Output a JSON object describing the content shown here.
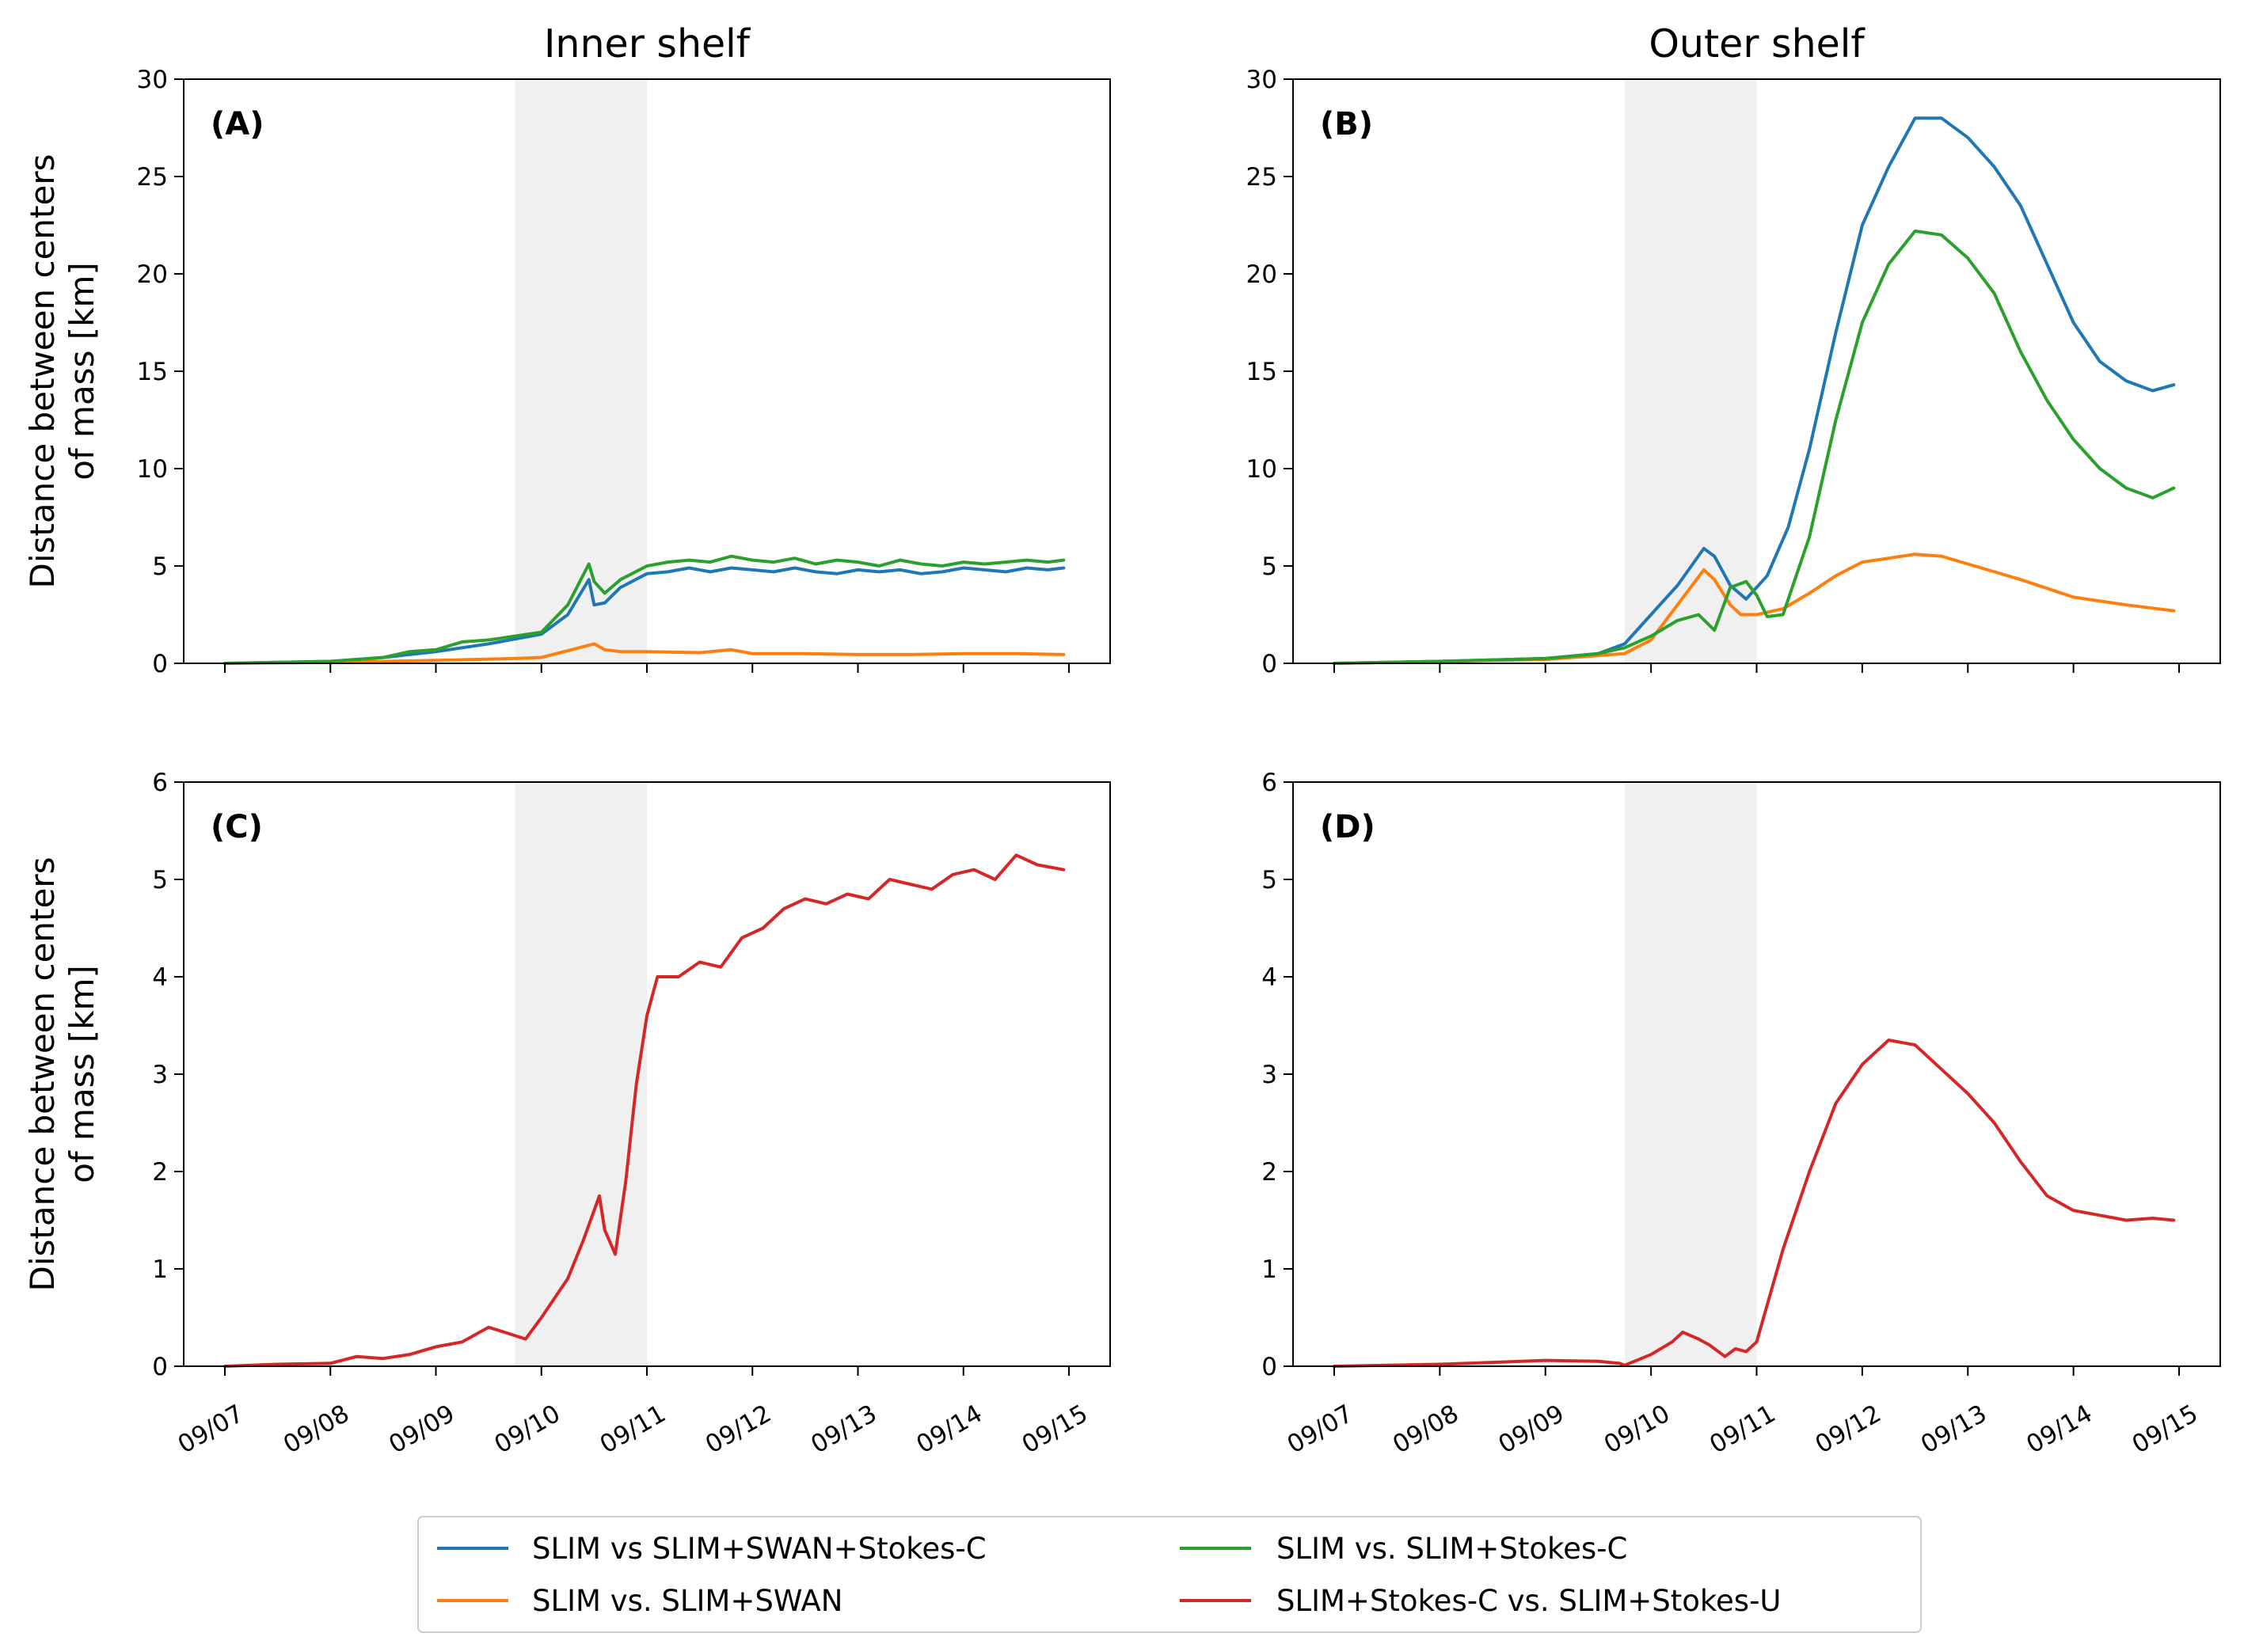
{
  "chart_data": [
    {
      "panel": "A",
      "type": "line",
      "column_title": "Inner shelf",
      "label": "(A)",
      "ylabel_lines": [
        "Distance between centers",
        "of mass [km]"
      ],
      "xlim": [
        0,
        8
      ],
      "ylim": [
        0,
        30
      ],
      "yticks": [
        0,
        5,
        10,
        15,
        20,
        25,
        30
      ],
      "show_x_tick_labels": false,
      "shade": [
        2.75,
        4.0
      ],
      "series": [
        {
          "name": "SLIM vs SLIM+SWAN+Stokes-C",
          "color": "#1f77b4",
          "x": [
            0,
            1,
            1.5,
            2.0,
            2.5,
            3.0,
            3.25,
            3.45,
            3.5,
            3.6,
            3.75,
            4.0,
            4.2,
            4.4,
            4.6,
            4.8,
            5.0,
            5.2,
            5.4,
            5.6,
            5.8,
            6.0,
            6.2,
            6.4,
            6.6,
            6.8,
            7.0,
            7.2,
            7.4,
            7.6,
            7.8,
            7.95
          ],
          "y": [
            0,
            0.1,
            0.3,
            0.6,
            1.0,
            1.5,
            2.5,
            4.3,
            3.0,
            3.1,
            3.9,
            4.6,
            4.7,
            4.9,
            4.7,
            4.9,
            4.8,
            4.7,
            4.9,
            4.7,
            4.6,
            4.8,
            4.7,
            4.8,
            4.6,
            4.7,
            4.9,
            4.8,
            4.7,
            4.9,
            4.8,
            4.9
          ]
        },
        {
          "name": "SLIM vs. SLIM+SWAN",
          "color": "#ff7f0e",
          "x": [
            0,
            1,
            2,
            2.75,
            3.0,
            3.5,
            3.6,
            3.75,
            4.0,
            4.5,
            4.8,
            5.0,
            5.5,
            6.0,
            6.5,
            7.0,
            7.5,
            7.95
          ],
          "y": [
            0,
            0.05,
            0.15,
            0.25,
            0.3,
            1.0,
            0.7,
            0.6,
            0.6,
            0.55,
            0.7,
            0.5,
            0.5,
            0.45,
            0.45,
            0.5,
            0.5,
            0.45
          ]
        },
        {
          "name": "SLIM vs. SLIM+Stokes-C",
          "color": "#2ca02c",
          "x": [
            0,
            0.5,
            1,
            1.25,
            1.5,
            1.75,
            2.0,
            2.25,
            2.5,
            2.75,
            3.0,
            3.25,
            3.45,
            3.5,
            3.6,
            3.75,
            4.0,
            4.2,
            4.4,
            4.6,
            4.8,
            5.0,
            5.2,
            5.4,
            5.6,
            5.8,
            6.0,
            6.2,
            6.4,
            6.6,
            6.8,
            7.0,
            7.2,
            7.4,
            7.6,
            7.8,
            7.95
          ],
          "y": [
            0,
            0.05,
            0.1,
            0.2,
            0.3,
            0.6,
            0.7,
            1.1,
            1.2,
            1.4,
            1.6,
            3.0,
            5.1,
            4.2,
            3.6,
            4.3,
            5.0,
            5.2,
            5.3,
            5.2,
            5.5,
            5.3,
            5.2,
            5.4,
            5.1,
            5.3,
            5.2,
            5.0,
            5.3,
            5.1,
            5.0,
            5.2,
            5.1,
            5.2,
            5.3,
            5.2,
            5.3
          ]
        }
      ]
    },
    {
      "panel": "B",
      "type": "line",
      "column_title": "Outer shelf",
      "label": "(B)",
      "xlim": [
        0,
        8
      ],
      "ylim": [
        0,
        30
      ],
      "yticks": [
        0,
        5,
        10,
        15,
        20,
        25,
        30
      ],
      "show_x_tick_labels": false,
      "shade": [
        2.75,
        4.0
      ],
      "series": [
        {
          "name": "SLIM vs SLIM+SWAN+Stokes-C",
          "color": "#1f77b4",
          "x": [
            0,
            1,
            2,
            2.5,
            2.75,
            3.0,
            3.25,
            3.5,
            3.6,
            3.75,
            3.9,
            4.1,
            4.3,
            4.5,
            4.75,
            5.0,
            5.25,
            5.5,
            5.75,
            6.0,
            6.25,
            6.5,
            6.75,
            7.0,
            7.25,
            7.5,
            7.75,
            7.95
          ],
          "y": [
            0,
            0.1,
            0.25,
            0.5,
            1.0,
            2.5,
            4.0,
            5.9,
            5.5,
            4.0,
            3.3,
            4.5,
            7.0,
            11.0,
            17.0,
            22.5,
            25.5,
            28.0,
            28.0,
            27.0,
            25.5,
            23.5,
            20.5,
            17.5,
            15.5,
            14.5,
            14.0,
            14.3
          ]
        },
        {
          "name": "SLIM vs. SLIM+SWAN",
          "color": "#ff7f0e",
          "x": [
            0,
            1,
            2,
            2.75,
            3.0,
            3.25,
            3.5,
            3.6,
            3.75,
            3.85,
            4.0,
            4.25,
            4.5,
            4.75,
            5.0,
            5.25,
            5.5,
            5.75,
            6.0,
            6.5,
            7.0,
            7.5,
            7.95
          ],
          "y": [
            0,
            0.1,
            0.2,
            0.5,
            1.2,
            3.0,
            4.8,
            4.3,
            3.0,
            2.5,
            2.5,
            2.8,
            3.6,
            4.5,
            5.2,
            5.4,
            5.6,
            5.5,
            5.1,
            4.3,
            3.4,
            3.0,
            2.7
          ]
        },
        {
          "name": "SLIM vs. SLIM+Stokes-C",
          "color": "#2ca02c",
          "x": [
            0,
            1,
            2,
            2.5,
            2.75,
            3.0,
            3.25,
            3.45,
            3.6,
            3.75,
            3.9,
            4.0,
            4.1,
            4.25,
            4.5,
            4.75,
            5.0,
            5.25,
            5.5,
            5.75,
            6.0,
            6.25,
            6.5,
            6.75,
            7.0,
            7.25,
            7.5,
            7.75,
            7.95
          ],
          "y": [
            0,
            0.1,
            0.25,
            0.5,
            0.8,
            1.4,
            2.2,
            2.5,
            1.7,
            3.9,
            4.2,
            3.5,
            2.4,
            2.5,
            6.5,
            12.5,
            17.5,
            20.5,
            22.2,
            22.0,
            20.8,
            19.0,
            16.0,
            13.5,
            11.5,
            10.0,
            9.0,
            8.5,
            9.0
          ]
        }
      ]
    },
    {
      "panel": "C",
      "type": "line",
      "label": "(C)",
      "ylabel_lines": [
        "Distance between centers",
        "of mass [km]"
      ],
      "xlim": [
        0,
        8
      ],
      "ylim": [
        0,
        6
      ],
      "yticks": [
        0,
        1,
        2,
        3,
        4,
        5,
        6
      ],
      "show_x_tick_labels": true,
      "shade": [
        2.75,
        4.0
      ],
      "series": [
        {
          "name": "SLIM+Stokes-C vs. SLIM+Stokes-U",
          "color": "#d62728",
          "x": [
            0,
            0.5,
            1.0,
            1.25,
            1.5,
            1.75,
            2.0,
            2.25,
            2.5,
            2.65,
            2.85,
            3.0,
            3.25,
            3.4,
            3.55,
            3.6,
            3.7,
            3.8,
            3.9,
            4.0,
            4.1,
            4.3,
            4.5,
            4.7,
            4.9,
            5.1,
            5.3,
            5.5,
            5.7,
            5.9,
            6.1,
            6.3,
            6.5,
            6.7,
            6.9,
            7.1,
            7.3,
            7.5,
            7.7,
            7.95
          ],
          "y": [
            0,
            0.02,
            0.03,
            0.1,
            0.08,
            0.12,
            0.2,
            0.25,
            0.4,
            0.35,
            0.28,
            0.5,
            0.9,
            1.3,
            1.75,
            1.4,
            1.15,
            1.9,
            2.9,
            3.6,
            4.0,
            4.0,
            4.15,
            4.1,
            4.4,
            4.5,
            4.7,
            4.8,
            4.75,
            4.85,
            4.8,
            5.0,
            4.95,
            4.9,
            5.05,
            5.1,
            5.0,
            5.25,
            5.15,
            5.1
          ]
        }
      ]
    },
    {
      "panel": "D",
      "type": "line",
      "label": "(D)",
      "xlim": [
        0,
        8
      ],
      "ylim": [
        0,
        6
      ],
      "yticks": [
        0,
        1,
        2,
        3,
        4,
        5,
        6
      ],
      "show_x_tick_labels": true,
      "shade": [
        2.75,
        4.0
      ],
      "series": [
        {
          "name": "SLIM+Stokes-C vs. SLIM+Stokes-U",
          "color": "#d62728",
          "x": [
            0,
            0.5,
            1.0,
            1.5,
            2.0,
            2.5,
            2.7,
            2.75,
            3.0,
            3.2,
            3.3,
            3.45,
            3.55,
            3.7,
            3.8,
            3.9,
            4.0,
            4.25,
            4.5,
            4.75,
            5.0,
            5.25,
            5.5,
            5.75,
            6.0,
            6.25,
            6.5,
            6.75,
            7.0,
            7.25,
            7.5,
            7.75,
            7.95
          ],
          "y": [
            0,
            0.01,
            0.02,
            0.04,
            0.06,
            0.05,
            0.03,
            0.01,
            0.12,
            0.25,
            0.35,
            0.28,
            0.22,
            0.1,
            0.18,
            0.15,
            0.25,
            1.2,
            2.0,
            2.7,
            3.1,
            3.35,
            3.3,
            3.05,
            2.8,
            2.5,
            2.1,
            1.75,
            1.6,
            1.55,
            1.5,
            1.52,
            1.5
          ]
        }
      ]
    }
  ],
  "x_tick_labels": [
    "09/07",
    "09/08",
    "09/09",
    "09/10",
    "09/11",
    "09/12",
    "09/13",
    "09/14",
    "09/15"
  ],
  "legend": {
    "placement": "bottom-center",
    "entries": [
      {
        "label": "SLIM vs SLIM+SWAN+Stokes-C",
        "color": "#1f77b4"
      },
      {
        "label": "SLIM vs. SLIM+SWAN",
        "color": "#ff7f0e"
      },
      {
        "label": "SLIM vs. SLIM+Stokes-C",
        "color": "#2ca02c"
      },
      {
        "label": "SLIM+Stokes-C vs. SLIM+Stokes-U",
        "color": "#d62728"
      }
    ]
  },
  "shade_color": "#f0f0f0"
}
